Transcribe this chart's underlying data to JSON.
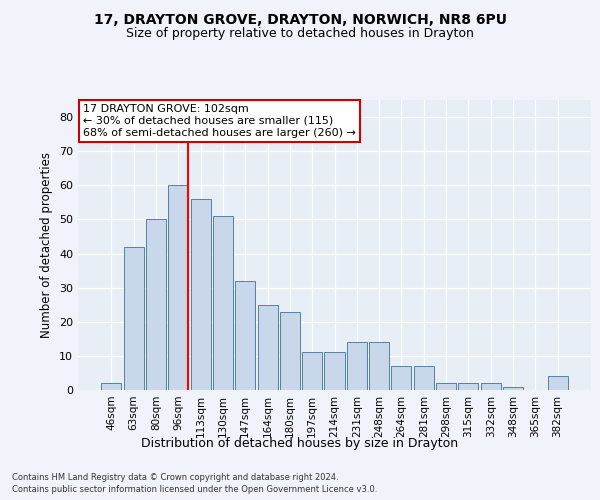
{
  "title": "17, DRAYTON GROVE, DRAYTON, NORWICH, NR8 6PU",
  "subtitle": "Size of property relative to detached houses in Drayton",
  "xlabel": "Distribution of detached houses by size in Drayton",
  "ylabel": "Number of detached properties",
  "bar_labels": [
    "46sqm",
    "63sqm",
    "80sqm",
    "96sqm",
    "113sqm",
    "130sqm",
    "147sqm",
    "164sqm",
    "180sqm",
    "197sqm",
    "214sqm",
    "231sqm",
    "248sqm",
    "264sqm",
    "281sqm",
    "298sqm",
    "315sqm",
    "332sqm",
    "348sqm",
    "365sqm",
    "382sqm"
  ],
  "bar_values": [
    2,
    42,
    50,
    60,
    56,
    51,
    32,
    25,
    23,
    11,
    11,
    14,
    14,
    7,
    7,
    2,
    2,
    2,
    1,
    0,
    4
  ],
  "bar_fill": "#c8d8ea",
  "bar_edge": "#5580a0",
  "bg_color": "#e8eef6",
  "fig_bg_color": "#f0f4fa",
  "grid_color": "#ffffff",
  "ylim_max": 85,
  "yticks": [
    0,
    10,
    20,
    30,
    40,
    50,
    60,
    70,
    80
  ],
  "red_line_x": 3.45,
  "ann_text": "17 DRAYTON GROVE: 102sqm\n← 30% of detached houses are smaller (115)\n68% of semi-detached houses are larger (260) →",
  "ann_box_fc": "#ffffff",
  "ann_box_ec": "#cc0000",
  "footer1": "Contains HM Land Registry data © Crown copyright and database right 2024.",
  "footer2": "Contains public sector information licensed under the Open Government Licence v3.0."
}
